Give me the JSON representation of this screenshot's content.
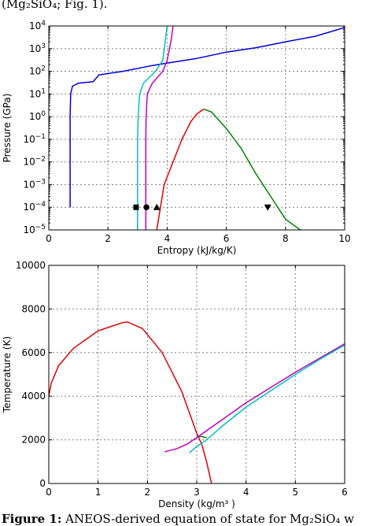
{
  "header_fragment": "(Mg₂SiO₄; Fig. 1).",
  "caption": {
    "label": "Figure 1:",
    "text": "ANEOS-derived equation of state for Mg₂SiO₄ w"
  },
  "colors": {
    "blue": "#0000dd",
    "cyan": "#00bfbf",
    "magenta": "#c000c0",
    "red": "#e00000",
    "green": "#008000",
    "grid": "#808080"
  },
  "chart_data": [
    {
      "type": "line",
      "xlabel": "Entropy (kJ/kg/K)",
      "ylabel": "Pressure (GPa)",
      "xlim": [
        0,
        10
      ],
      "ylim": [
        1e-05,
        10000.0
      ],
      "yscale": "log",
      "grid": true,
      "x_ticks": [
        "0",
        "2",
        "4",
        "6",
        "8",
        "10"
      ],
      "y_tick_exponents": [
        -5,
        -4,
        -3,
        -2,
        -1,
        0,
        1,
        2,
        3,
        4
      ],
      "series": [
        {
          "color": "blue",
          "x": [
            0.72,
            0.72,
            0.74,
            0.8,
            1.0,
            1.5,
            1.7,
            2.5,
            3.5,
            4.0,
            5.0,
            6.0,
            7.0,
            8.0,
            9.0,
            10.0
          ],
          "y": [
            0.0001,
            1,
            10,
            22,
            30,
            35,
            70,
            100,
            180,
            230,
            370,
            700,
            1100,
            2000,
            3500,
            8500
          ]
        },
        {
          "color": "cyan",
          "x": [
            3.0,
            3.0,
            3.02,
            3.07,
            3.2,
            3.6,
            3.85,
            3.95,
            4.0
          ],
          "y": [
            1e-05,
            0.1,
            1,
            10,
            30,
            100,
            300,
            3000,
            10000.0
          ]
        },
        {
          "color": "magenta",
          "x": [
            3.28,
            3.28,
            3.29,
            3.33,
            3.5,
            3.85,
            4.0,
            4.15,
            4.2
          ],
          "y": [
            1e-05,
            0.1,
            1,
            10,
            30,
            100,
            300,
            3000,
            10000.0
          ]
        },
        {
          "color": "red",
          "x": [
            3.65,
            3.9,
            4.2,
            4.5,
            4.8,
            5.0,
            5.2,
            5.25
          ],
          "y": [
            1e-05,
            0.001,
            0.01,
            0.1,
            0.6,
            1.3,
            2.0,
            2.1
          ]
        },
        {
          "color": "green",
          "x": [
            5.25,
            5.5,
            6.0,
            6.5,
            7.0,
            7.5,
            8.0,
            8.5
          ],
          "y": [
            2.1,
            1.6,
            0.3,
            0.04,
            0.003,
            0.0003,
            3e-05,
            1e-05
          ]
        }
      ],
      "markers": [
        {
          "shape": "square",
          "x": 2.95,
          "y": 0.0001
        },
        {
          "shape": "circle",
          "x": 3.3,
          "y": 0.0001
        },
        {
          "shape": "triangle-up",
          "x": 3.65,
          "y": 0.0001
        },
        {
          "shape": "triangle-down",
          "x": 7.4,
          "y": 0.0001
        }
      ]
    },
    {
      "type": "line",
      "xlabel": "Density (kg/m³ )",
      "ylabel": "Temperature (K)",
      "xlim": [
        0,
        6
      ],
      "ylim": [
        0,
        10000
      ],
      "grid": true,
      "x_ticks": [
        "0",
        "1",
        "2",
        "3",
        "4",
        "5",
        "6"
      ],
      "y_ticks": [
        "0",
        "2000",
        "4000",
        "6000",
        "8000",
        "10000"
      ],
      "series": [
        {
          "color": "red",
          "x": [
            0.0,
            0.05,
            0.2,
            0.5,
            1.0,
            1.5,
            1.6,
            1.9,
            2.3,
            2.7,
            3.0,
            3.1,
            3.2,
            3.3
          ],
          "y": [
            4000,
            4600,
            5400,
            6200,
            7000,
            7380,
            7400,
            7100,
            6000,
            4200,
            2300,
            1800,
            1000,
            0
          ]
        },
        {
          "color": "green",
          "x": [
            3.0,
            3.1,
            3.2
          ],
          "y": [
            2150,
            2150,
            2100
          ]
        },
        {
          "color": "magenta",
          "x": [
            2.35,
            2.6,
            2.8,
            3.0,
            3.5,
            4.0,
            4.5,
            5.0,
            5.5,
            6.0
          ],
          "y": [
            1450,
            1600,
            1800,
            2100,
            2900,
            3700,
            4400,
            5100,
            5750,
            6400
          ]
        },
        {
          "color": "cyan",
          "x": [
            2.85,
            3.0,
            3.2,
            3.5,
            4.0,
            4.5,
            5.0,
            5.5,
            6.0
          ],
          "y": [
            1400,
            1700,
            2000,
            2600,
            3500,
            4250,
            5000,
            5700,
            6350
          ]
        }
      ]
    }
  ]
}
